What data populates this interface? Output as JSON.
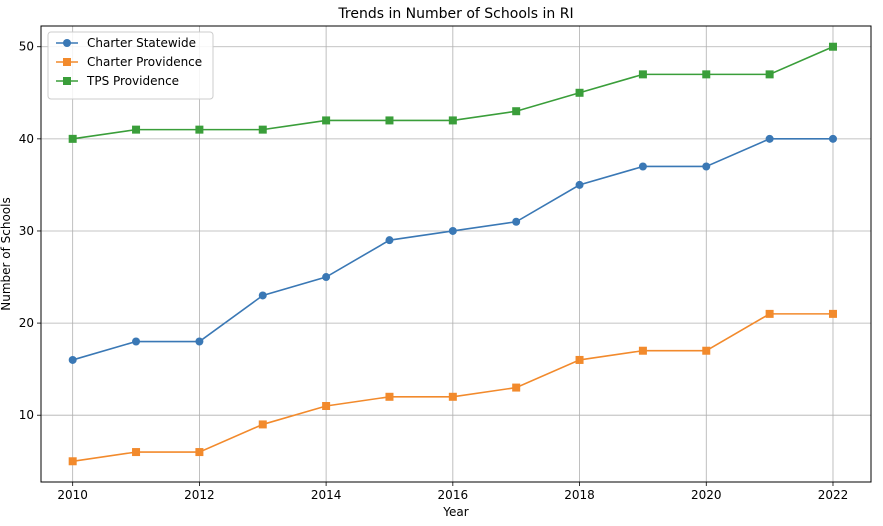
{
  "chart_data": {
    "type": "line",
    "title": "Trends in Number of Schools in RI",
    "xlabel": "Year",
    "ylabel": "Number of Schools",
    "x": [
      2010,
      2011,
      2012,
      2013,
      2014,
      2015,
      2016,
      2017,
      2018,
      2019,
      2020,
      2021,
      2022
    ],
    "xticks": [
      2010,
      2012,
      2014,
      2016,
      2018,
      2020,
      2022
    ],
    "yticks": [
      10,
      20,
      30,
      40,
      50
    ],
    "xlim": [
      2009.5,
      2022.6
    ],
    "ylim": [
      2.75,
      52.25
    ],
    "grid": true,
    "legend_position": "top-left",
    "series": [
      {
        "name": "Charter Statewide",
        "color": "#3a78b5",
        "marker": "circle",
        "values": [
          16,
          18,
          18,
          23,
          25,
          29,
          30,
          31,
          35,
          37,
          37,
          40,
          40
        ]
      },
      {
        "name": "Charter Providence",
        "color": "#f28a2c",
        "marker": "square",
        "values": [
          5,
          6,
          6,
          9,
          11,
          12,
          12,
          13,
          16,
          17,
          17,
          21,
          21
        ]
      },
      {
        "name": "TPS Providence",
        "color": "#3a9e3a",
        "marker": "square",
        "values": [
          40,
          41,
          41,
          41,
          42,
          42,
          42,
          43,
          45,
          47,
          47,
          47,
          50
        ]
      }
    ]
  }
}
